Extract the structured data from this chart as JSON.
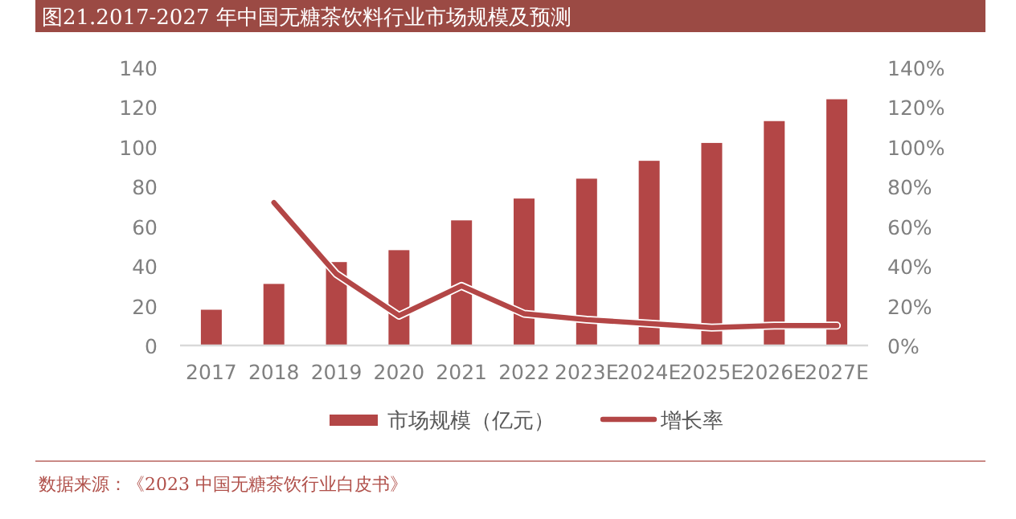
{
  "chart_data": {
    "type": "bar",
    "title": "图21.2017-2027 年中国无糖茶饮料行业市场规模及预测",
    "categories": [
      "2017",
      "2018",
      "2019",
      "2020",
      "2021",
      "2022",
      "2023E",
      "2024E",
      "2025E",
      "2026E",
      "2027E"
    ],
    "series": [
      {
        "name": "市场规模（亿元）",
        "color": "#b34646",
        "values": [
          18,
          31,
          42,
          48,
          63,
          74,
          84,
          93,
          102,
          113,
          124
        ]
      },
      {
        "name": "增长率",
        "type": "line",
        "axis": "y2",
        "color": "#b34646",
        "values": [
          null,
          72,
          36,
          15,
          30,
          16,
          13,
          11,
          9,
          10,
          10
        ]
      }
    ],
    "ylim": [
      0,
      140
    ],
    "yticks": [
      0,
      20,
      40,
      60,
      80,
      100,
      120,
      140
    ],
    "y2lim": [
      0,
      140
    ],
    "y2ticks": [
      {
        "value": 0,
        "label": "0%"
      },
      {
        "value": 20,
        "label": "20%"
      },
      {
        "value": 40,
        "label": "40%"
      },
      {
        "value": 60,
        "label": "60%"
      },
      {
        "value": 80,
        "label": "80%"
      },
      {
        "value": 100,
        "label": "100%"
      },
      {
        "value": 120,
        "label": "120%"
      },
      {
        "value": 140,
        "label": "140%"
      }
    ],
    "legend": "bottom",
    "grid": false,
    "annotations": [
      "数据来源：《2023 中国无糖茶饮行业白皮书》"
    ]
  }
}
